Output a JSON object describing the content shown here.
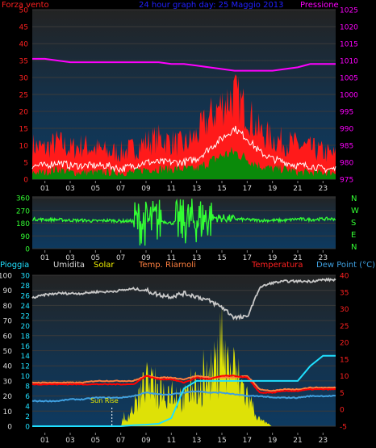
{
  "header": {
    "left_label": "Forza vento",
    "center_label": "24 hour graph day: 25 Maggio 2013",
    "right_label": "Pressione"
  },
  "legend_row": {
    "pioggia": "Pioggia",
    "umidita": "Umidita",
    "solar": "Solar",
    "riarnoli": "Temp. Riarnoli",
    "temperatura": "Temperatura",
    "dewpoint": "Dew Point (°C)"
  },
  "sunrise_label": "Sun Rise",
  "compass": [
    "N",
    "W",
    "S",
    "E",
    "N"
  ],
  "x_ticks": [
    "01",
    "03",
    "05",
    "07",
    "09",
    "11",
    "13",
    "15",
    "17",
    "19",
    "21",
    "23"
  ],
  "colors": {
    "wind_gust": "#ff1a1a",
    "wind_avg": "#ffffff",
    "wind_low": "#0a8a0a",
    "pressure": "#ff00ff",
    "direction": "#33ff33",
    "humidity": "#c8c8c8",
    "solar": "#f0f000",
    "riarnoli": "#ff8040",
    "temperatura": "#ff0000",
    "dewpoint": "#3fa0e0",
    "rain": "#20e0ff"
  },
  "chart_data": [
    {
      "type": "line",
      "name": "wind-pressure",
      "title": "24 hour graph day: 25 Maggio 2013",
      "ylabel": "Forza vento",
      "y2label": "Pressione",
      "ylim": [
        0,
        50
      ],
      "y2lim": [
        975,
        1025
      ],
      "yticks": [
        0,
        5,
        10,
        15,
        20,
        25,
        30,
        35,
        40,
        45,
        50
      ],
      "y2ticks": [
        975,
        980,
        985,
        990,
        995,
        1000,
        1005,
        1010,
        1015,
        1020,
        1025
      ],
      "x_hours": [
        0,
        1,
        2,
        3,
        4,
        5,
        6,
        7,
        8,
        9,
        10,
        11,
        12,
        13,
        14,
        15,
        16,
        17,
        18,
        19,
        20,
        21,
        22,
        23,
        24
      ],
      "series": [
        {
          "key": "gust",
          "values": [
            10,
            9,
            11,
            9,
            10,
            9,
            8,
            8,
            9,
            11,
            12,
            11,
            10,
            13,
            18,
            22,
            25,
            20,
            14,
            12,
            11,
            10,
            9,
            8,
            7
          ]
        },
        {
          "key": "avg",
          "values": [
            4,
            4,
            5,
            4,
            4,
            4,
            4,
            3,
            4,
            5,
            5,
            5,
            5,
            6,
            9,
            12,
            15,
            12,
            8,
            6,
            5,
            4,
            4,
            3,
            3
          ]
        },
        {
          "key": "low",
          "values": [
            2,
            2,
            3,
            2,
            2,
            2,
            2,
            2,
            2,
            3,
            3,
            3,
            3,
            3,
            5,
            7,
            8,
            6,
            4,
            3,
            3,
            2,
            2,
            2,
            2
          ]
        },
        {
          "key": "pressure",
          "values": [
            1010.5,
            1010.5,
            1010,
            1009.5,
            1009.5,
            1009.5,
            1009.5,
            1009.5,
            1009.5,
            1009.5,
            1009.5,
            1009,
            1009,
            1008.5,
            1008,
            1007.5,
            1007,
            1007,
            1007,
            1007,
            1007.5,
            1008,
            1009,
            1009,
            1009
          ]
        }
      ]
    },
    {
      "type": "line",
      "name": "wind-direction",
      "ylim": [
        0,
        360
      ],
      "yticks": [
        0,
        90,
        180,
        270,
        360
      ],
      "x_hours": [
        0,
        1,
        2,
        3,
        4,
        5,
        6,
        7,
        8,
        9,
        10,
        11,
        12,
        13,
        14,
        15,
        16,
        17,
        18,
        19,
        20,
        21,
        22,
        23,
        24
      ],
      "series": [
        {
          "key": "direction",
          "values": [
            210,
            205,
            205,
            200,
            200,
            195,
            200,
            195,
            195,
            180,
            200,
            180,
            190,
            200,
            220,
            215,
            210,
            205,
            200,
            200,
            200,
            210,
            205,
            210,
            210
          ]
        }
      ]
    },
    {
      "type": "line",
      "name": "humidity-temp-solar",
      "ylabel": "Pioggia",
      "y2label": "Dew Point (°C)",
      "ylim": [
        0,
        100
      ],
      "yticks": [
        0,
        10,
        20,
        30,
        40,
        50,
        60,
        70,
        80,
        90,
        100
      ],
      "y_mid_ticks": [
        0,
        2,
        4,
        6,
        8,
        10,
        12,
        14,
        16,
        18,
        20,
        22,
        24,
        26,
        28,
        30
      ],
      "y2lim": [
        -5,
        40
      ],
      "y2ticks": [
        -5,
        0,
        5,
        10,
        15,
        20,
        25,
        30,
        35,
        40
      ],
      "x_hours": [
        0,
        1,
        2,
        3,
        4,
        5,
        6,
        7,
        8,
        9,
        10,
        11,
        12,
        13,
        14,
        15,
        16,
        17,
        18,
        19,
        20,
        21,
        22,
        23,
        24
      ],
      "series": [
        {
          "key": "humidity",
          "values": [
            85,
            87,
            88,
            88,
            88,
            89,
            89,
            90,
            91,
            90,
            87,
            86,
            88,
            86,
            83,
            79,
            72,
            72,
            92,
            95,
            96,
            96,
            96,
            97,
            97
          ]
        },
        {
          "key": "solar",
          "values": [
            0,
            0,
            0,
            0,
            0,
            0,
            0,
            0,
            15,
            35,
            28,
            30,
            22,
            30,
            40,
            55,
            45,
            25,
            5,
            0,
            0,
            0,
            0,
            0,
            0
          ]
        },
        {
          "key": "riarnoli",
          "values": [
            8,
            8,
            8,
            8,
            8,
            8.5,
            8.5,
            8.5,
            8.5,
            10,
            9.5,
            9.5,
            9,
            10,
            9.5,
            9.5,
            9.5,
            10,
            6,
            5.5,
            6,
            6,
            6.5,
            6.5,
            6.5
          ]
        },
        {
          "key": "temperatura",
          "values": [
            7.5,
            7.5,
            7.5,
            7.5,
            7.5,
            7.5,
            7.5,
            7.5,
            7.5,
            10,
            9,
            9,
            8,
            9.5,
            9,
            10,
            10,
            9.5,
            5,
            5,
            5.5,
            5.5,
            6,
            6,
            6
          ]
        },
        {
          "key": "dewpoint",
          "values": [
            2.5,
            2.5,
            2.5,
            3,
            3,
            3.5,
            3.5,
            3.5,
            4,
            5,
            4.5,
            4.5,
            5,
            5.5,
            5,
            5,
            4.5,
            4,
            4,
            3.5,
            3.5,
            3.5,
            4,
            4,
            4
          ]
        },
        {
          "key": "rain",
          "values": [
            0,
            0,
            0,
            0,
            0,
            0,
            0,
            0,
            0.2,
            0.3,
            0.5,
            1.6,
            7.5,
            9,
            9,
            9,
            9,
            9,
            9,
            9,
            9,
            9,
            12,
            14,
            14
          ]
        }
      ]
    }
  ]
}
